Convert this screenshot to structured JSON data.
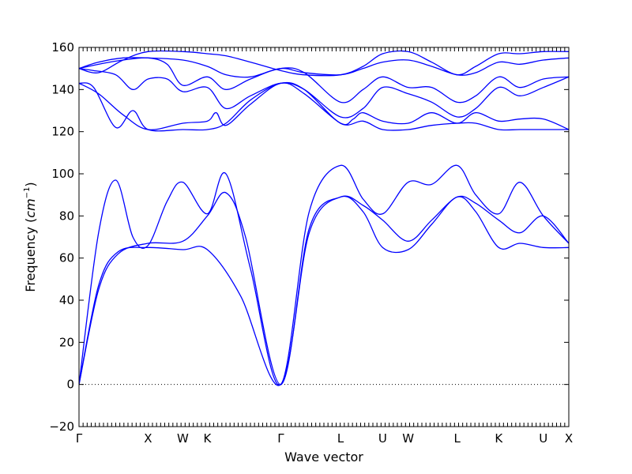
{
  "chart_data": {
    "type": "line",
    "xlabel": "Wave vector",
    "ylabel": "Frequency",
    "ylabel_unit": "cm",
    "ylabel_unit_exp": "−1",
    "ylim": [
      -20,
      160
    ],
    "yticks": [
      -20,
      0,
      20,
      40,
      60,
      80,
      100,
      120,
      140,
      160
    ],
    "xlim": [
      0,
      1
    ],
    "grid": false,
    "zero_line": true,
    "color": "#0000ff",
    "high_symmetry_points": [
      {
        "label": "Γ",
        "x": 0.0
      },
      {
        "label": "X",
        "x": 0.141
      },
      {
        "label": "W",
        "x": 0.212
      },
      {
        "label": "K",
        "x": 0.262
      },
      {
        "label": "Γ",
        "x": 0.412
      },
      {
        "label": "L",
        "x": 0.534
      },
      {
        "label": "U",
        "x": 0.62
      },
      {
        "label": "W",
        "x": 0.672
      },
      {
        "label": "L",
        "x": 0.772
      },
      {
        "label": "K",
        "x": 0.857
      },
      {
        "label": "U",
        "x": 0.948
      },
      {
        "label": "X",
        "x": 1.0
      }
    ],
    "series": [
      {
        "values": [
          [
            0,
            0
          ],
          [
            0.04,
            47
          ],
          [
            0.08,
            63
          ],
          [
            0.141,
            65
          ],
          [
            0.212,
            64
          ],
          [
            0.262,
            64
          ],
          [
            0.33,
            42
          ],
          [
            0.412,
            0
          ],
          [
            0.47,
            72
          ],
          [
            0.534,
            89
          ],
          [
            0.58,
            82
          ],
          [
            0.62,
            65
          ],
          [
            0.672,
            64
          ],
          [
            0.72,
            76
          ],
          [
            0.772,
            89
          ],
          [
            0.81,
            82
          ],
          [
            0.857,
            65
          ],
          [
            0.9,
            67
          ],
          [
            0.948,
            65
          ],
          [
            1.0,
            65
          ]
        ]
      },
      {
        "values": [
          [
            0,
            0
          ],
          [
            0.04,
            45
          ],
          [
            0.08,
            62
          ],
          [
            0.141,
            67
          ],
          [
            0.212,
            68
          ],
          [
            0.262,
            80
          ],
          [
            0.3,
            91
          ],
          [
            0.34,
            70
          ],
          [
            0.412,
            0
          ],
          [
            0.47,
            74
          ],
          [
            0.534,
            89
          ],
          [
            0.58,
            85
          ],
          [
            0.62,
            78
          ],
          [
            0.672,
            68
          ],
          [
            0.72,
            78
          ],
          [
            0.772,
            89
          ],
          [
            0.81,
            86
          ],
          [
            0.857,
            78
          ],
          [
            0.9,
            72
          ],
          [
            0.948,
            80
          ],
          [
            1.0,
            67
          ]
        ]
      },
      {
        "values": [
          [
            0,
            0
          ],
          [
            0.04,
            72
          ],
          [
            0.075,
            97
          ],
          [
            0.11,
            70
          ],
          [
            0.141,
            66
          ],
          [
            0.18,
            87
          ],
          [
            0.212,
            96
          ],
          [
            0.262,
            81
          ],
          [
            0.3,
            100
          ],
          [
            0.35,
            55
          ],
          [
            0.412,
            0
          ],
          [
            0.47,
            82
          ],
          [
            0.534,
            104
          ],
          [
            0.58,
            88
          ],
          [
            0.62,
            81
          ],
          [
            0.672,
            96
          ],
          [
            0.72,
            95
          ],
          [
            0.772,
            104
          ],
          [
            0.81,
            90
          ],
          [
            0.857,
            81
          ],
          [
            0.9,
            96
          ],
          [
            0.948,
            80
          ],
          [
            1.0,
            67
          ]
        ]
      },
      {
        "values": [
          [
            0,
            143
          ],
          [
            0.03,
            141
          ],
          [
            0.075,
            122
          ],
          [
            0.11,
            130
          ],
          [
            0.141,
            121
          ],
          [
            0.212,
            121
          ],
          [
            0.262,
            121
          ],
          [
            0.3,
            124
          ],
          [
            0.35,
            135
          ],
          [
            0.412,
            143
          ],
          [
            0.46,
            140
          ],
          [
            0.534,
            124
          ],
          [
            0.58,
            125
          ],
          [
            0.62,
            121
          ],
          [
            0.672,
            121
          ],
          [
            0.72,
            123
          ],
          [
            0.772,
            124
          ],
          [
            0.81,
            124
          ],
          [
            0.857,
            121
          ],
          [
            0.9,
            121
          ],
          [
            0.948,
            121
          ],
          [
            1.0,
            121
          ]
        ]
      },
      {
        "values": [
          [
            0,
            143
          ],
          [
            0.04,
            138
          ],
          [
            0.09,
            128
          ],
          [
            0.141,
            121
          ],
          [
            0.212,
            124
          ],
          [
            0.262,
            125
          ],
          [
            0.28,
            129
          ],
          [
            0.3,
            123
          ],
          [
            0.35,
            133
          ],
          [
            0.412,
            143
          ],
          [
            0.46,
            138
          ],
          [
            0.534,
            124
          ],
          [
            0.56,
            126
          ],
          [
            0.58,
            129
          ],
          [
            0.62,
            125
          ],
          [
            0.672,
            124
          ],
          [
            0.72,
            129
          ],
          [
            0.772,
            124
          ],
          [
            0.81,
            129
          ],
          [
            0.857,
            125
          ],
          [
            0.9,
            126
          ],
          [
            0.948,
            126
          ],
          [
            1.0,
            121
          ]
        ]
      },
      {
        "values": [
          [
            0,
            150
          ],
          [
            0.03,
            149
          ],
          [
            0.075,
            147
          ],
          [
            0.11,
            140
          ],
          [
            0.141,
            145
          ],
          [
            0.18,
            145
          ],
          [
            0.212,
            139
          ],
          [
            0.262,
            141
          ],
          [
            0.3,
            131
          ],
          [
            0.35,
            137
          ],
          [
            0.412,
            143
          ],
          [
            0.46,
            140
          ],
          [
            0.534,
            127
          ],
          [
            0.58,
            131
          ],
          [
            0.62,
            141
          ],
          [
            0.672,
            138
          ],
          [
            0.72,
            134
          ],
          [
            0.772,
            127
          ],
          [
            0.81,
            131
          ],
          [
            0.857,
            141
          ],
          [
            0.9,
            137
          ],
          [
            0.948,
            141
          ],
          [
            1.0,
            146
          ]
        ]
      },
      {
        "values": [
          [
            0,
            150
          ],
          [
            0.04,
            152
          ],
          [
            0.09,
            154
          ],
          [
            0.141,
            155
          ],
          [
            0.18,
            152
          ],
          [
            0.212,
            142
          ],
          [
            0.262,
            146
          ],
          [
            0.3,
            140
          ],
          [
            0.35,
            145
          ],
          [
            0.412,
            150
          ],
          [
            0.46,
            148
          ],
          [
            0.534,
            134
          ],
          [
            0.58,
            140
          ],
          [
            0.62,
            146
          ],
          [
            0.672,
            141
          ],
          [
            0.72,
            141
          ],
          [
            0.772,
            134
          ],
          [
            0.81,
            137
          ],
          [
            0.857,
            146
          ],
          [
            0.9,
            141
          ],
          [
            0.948,
            145
          ],
          [
            1.0,
            146
          ]
        ]
      },
      {
        "values": [
          [
            0,
            150
          ],
          [
            0.04,
            153
          ],
          [
            0.09,
            155
          ],
          [
            0.141,
            155
          ],
          [
            0.212,
            154
          ],
          [
            0.262,
            151
          ],
          [
            0.3,
            147
          ],
          [
            0.35,
            146
          ],
          [
            0.412,
            150
          ],
          [
            0.46,
            148
          ],
          [
            0.534,
            147
          ],
          [
            0.58,
            150
          ],
          [
            0.62,
            153
          ],
          [
            0.672,
            154
          ],
          [
            0.72,
            151
          ],
          [
            0.772,
            147
          ],
          [
            0.81,
            148
          ],
          [
            0.857,
            153
          ],
          [
            0.9,
            152
          ],
          [
            0.948,
            154
          ],
          [
            1.0,
            155
          ]
        ]
      },
      {
        "values": [
          [
            0,
            150
          ],
          [
            0.04,
            148
          ],
          [
            0.09,
            154
          ],
          [
            0.141,
            158
          ],
          [
            0.212,
            158
          ],
          [
            0.262,
            157
          ],
          [
            0.3,
            156
          ],
          [
            0.35,
            153
          ],
          [
            0.412,
            149
          ],
          [
            0.46,
            147
          ],
          [
            0.534,
            147
          ],
          [
            0.58,
            151
          ],
          [
            0.62,
            157
          ],
          [
            0.672,
            158
          ],
          [
            0.72,
            153
          ],
          [
            0.772,
            147
          ],
          [
            0.81,
            151
          ],
          [
            0.857,
            157
          ],
          [
            0.9,
            157
          ],
          [
            0.948,
            158
          ],
          [
            1.0,
            158
          ]
        ]
      }
    ]
  }
}
